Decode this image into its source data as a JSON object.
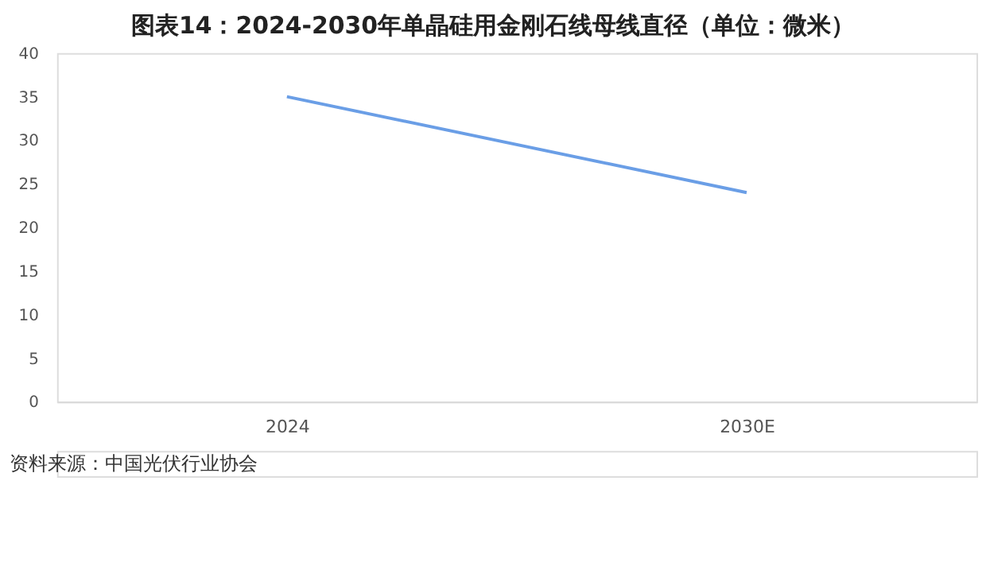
{
  "chart_data": {
    "type": "line",
    "title": "图表14：2024-2030年单晶硅用金刚石线母线直径（单位：微米）",
    "categories": [
      "2024",
      "2030E"
    ],
    "series": [
      {
        "color": "#6a9ee6",
        "values": [
          35,
          24
        ]
      }
    ],
    "ylim": [
      0,
      40
    ],
    "yticks": [
      0,
      5,
      10,
      15,
      20,
      25,
      30,
      35,
      40
    ],
    "grid": false,
    "legend": false,
    "marker": "none",
    "line_style": "solid",
    "annotations": [
      "资料来源：中国光伏行业协会"
    ]
  }
}
